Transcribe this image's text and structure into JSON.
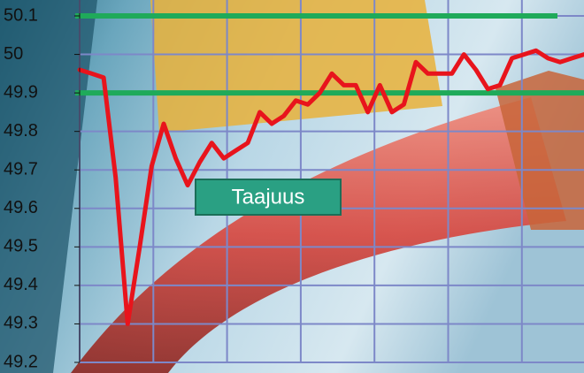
{
  "chart_data": {
    "type": "line",
    "annotation": "Taajuus",
    "series": [
      {
        "name": "Taajuus",
        "color": "#e8141c",
        "values": [
          49.96,
          49.95,
          49.94,
          49.68,
          49.3,
          49.5,
          49.71,
          49.82,
          49.73,
          49.66,
          49.72,
          49.77,
          49.73,
          49.75,
          49.77,
          49.85,
          49.82,
          49.84,
          49.88,
          49.87,
          49.9,
          49.95,
          49.92,
          49.92,
          49.85,
          49.92,
          49.85,
          49.87,
          49.98,
          49.95,
          49.95,
          49.95,
          50.0,
          49.96,
          49.91,
          49.92,
          49.99,
          50.0,
          50.01,
          49.99,
          49.98,
          49.99,
          50.0
        ]
      }
    ],
    "reference_lines": {
      "color": "#1faa5a",
      "values": [
        50.1,
        49.9
      ]
    },
    "ylim": [
      49.2,
      50.1
    ],
    "yticks": [
      49.2,
      49.3,
      49.4,
      49.5,
      49.6,
      49.7,
      49.8,
      49.9,
      50,
      50.1
    ],
    "grid": true
  }
}
